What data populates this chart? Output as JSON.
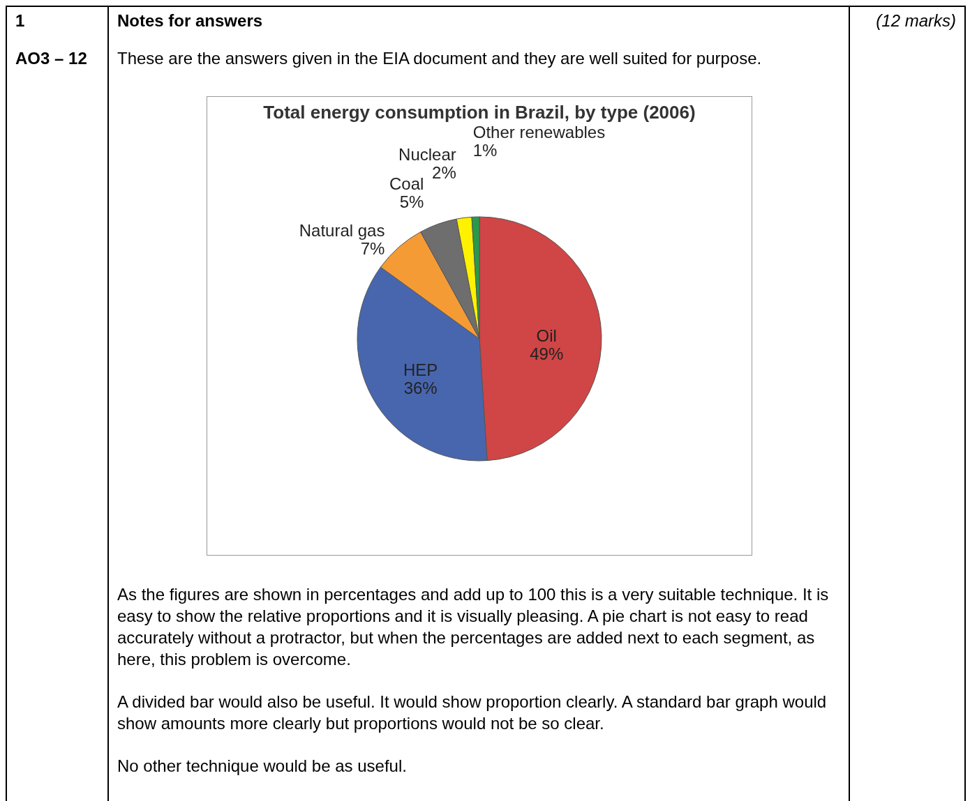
{
  "chart_data": {
    "type": "pie",
    "title": "Total energy consumption in Brazil, by type (2006)",
    "categories": [
      "Oil",
      "HEP",
      "Natural gas",
      "Coal",
      "Nuclear",
      "Other renewables"
    ],
    "values": [
      49,
      36,
      7,
      5,
      2,
      1
    ],
    "colors": [
      "#d04545",
      "#4866ad",
      "#f59b35",
      "#6e6e6e",
      "#fff200",
      "#2a9a4a"
    ],
    "value_labels": [
      "49%",
      "36%",
      "7%",
      "5%",
      "2%",
      "1%"
    ],
    "annotations": [
      "1",
      "Notes for answers",
      "(12 marks)",
      "AO3 – 12",
      "These are the answers given in the EIA document and they are well suited for purpose.",
      "As the figures are shown in percentages and add up to 100 this is a very suitable technique.  It is easy to show the relative proportions and it is visually pleasing.  A pie chart is not easy to read accurately without a protractor, but when the percentages are added next to each segment, as here, this problem is overcome.",
      "A divided bar would also be useful.  It would show proportion clearly.  A standard bar graph would show amounts more clearly but proportions would not be so clear.",
      "No other technique would be as useful."
    ]
  }
}
